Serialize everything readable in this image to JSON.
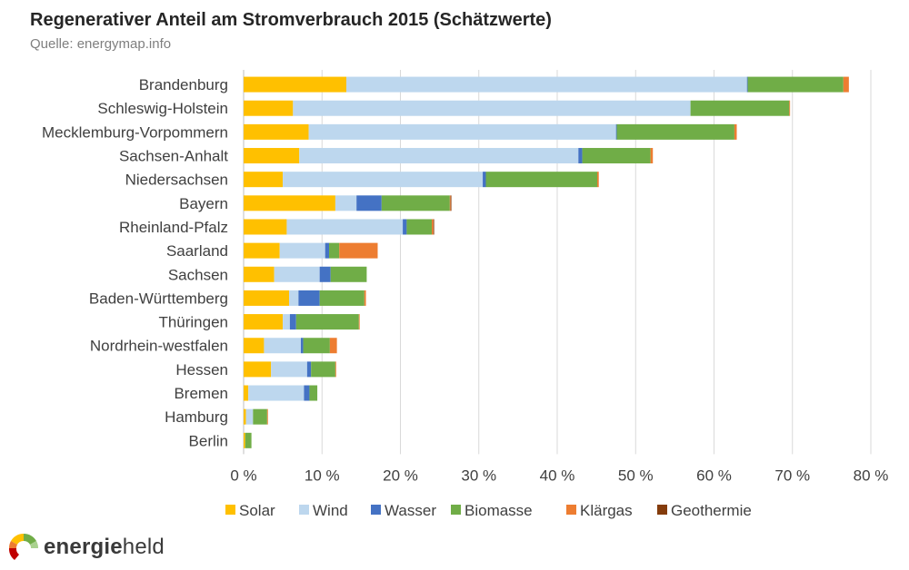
{
  "title": "Regenerativer Anteil am Stromverbrauch 2015 (Schätzwerte)",
  "subtitle": "Quelle: energymap.info",
  "logo": {
    "brand_bold": "energie",
    "brand_light": "held",
    "icon": "energieheld-logo-icon"
  },
  "colors": {
    "Solar": "#ffc000",
    "Wind": "#bdd7ee",
    "Wasser": "#4472c4",
    "Biomasse": "#70ad47",
    "Klärgas": "#ed7d31",
    "Geothermie": "#843c0c",
    "grid": "#d9d9d9"
  },
  "chart_data": {
    "type": "bar",
    "orientation": "horizontal",
    "stacked": true,
    "title": "Regenerativer Anteil am Stromverbrauch 2015 (Schätzwerte)",
    "xlim": [
      0,
      80
    ],
    "x_ticks": [
      "0 %",
      "10 %",
      "20 %",
      "30 %",
      "40 %",
      "50 %",
      "60 %",
      "70 %",
      "80 %"
    ],
    "grid": true,
    "legend_position": "bottom",
    "categories": [
      "Brandenburg",
      "Schleswig-Holstein",
      "Mecklemburg-Vorpommern",
      "Sachsen-Anhalt",
      "Niedersachsen",
      "Bayern",
      "Rheinland-Pfalz",
      "Saarland",
      "Sachsen",
      "Baden-Württemberg",
      "Thüringen",
      "Nordrhein-westfalen",
      "Hessen",
      "Bremen",
      "Hamburg",
      "Berlin"
    ],
    "series": [
      {
        "name": "Solar",
        "values": [
          13.1,
          6.3,
          8.3,
          7.1,
          5.0,
          11.7,
          5.5,
          4.6,
          3.9,
          5.8,
          5.0,
          2.6,
          3.5,
          0.6,
          0.3,
          0.2
        ]
      },
      {
        "name": "Wind",
        "values": [
          51.1,
          50.7,
          39.2,
          35.6,
          25.5,
          2.7,
          14.8,
          5.8,
          5.8,
          1.2,
          0.9,
          4.7,
          4.6,
          7.1,
          0.9,
          0.0
        ]
      },
      {
        "name": "Wasser",
        "values": [
          0.1,
          0.0,
          0.1,
          0.5,
          0.4,
          3.2,
          0.5,
          0.5,
          1.4,
          2.7,
          0.8,
          0.3,
          0.5,
          0.7,
          0.0,
          0.0
        ]
      },
      {
        "name": "Biomasse",
        "values": [
          12.2,
          12.6,
          15.0,
          8.7,
          14.2,
          8.7,
          3.2,
          1.3,
          4.6,
          5.7,
          8.0,
          3.4,
          3.1,
          1.0,
          1.8,
          0.8
        ]
      },
      {
        "name": "Klärgas",
        "values": [
          0.7,
          0.1,
          0.3,
          0.3,
          0.2,
          0.1,
          0.2,
          4.9,
          0.0,
          0.2,
          0.1,
          0.9,
          0.1,
          0.0,
          0.1,
          0.0
        ]
      },
      {
        "name": "Geothermie",
        "values": [
          0.0,
          0.0,
          0.0,
          0.0,
          0.0,
          0.1,
          0.1,
          0.0,
          0.0,
          0.0,
          0.0,
          0.0,
          0.0,
          0.0,
          0.0,
          0.0
        ]
      }
    ]
  }
}
